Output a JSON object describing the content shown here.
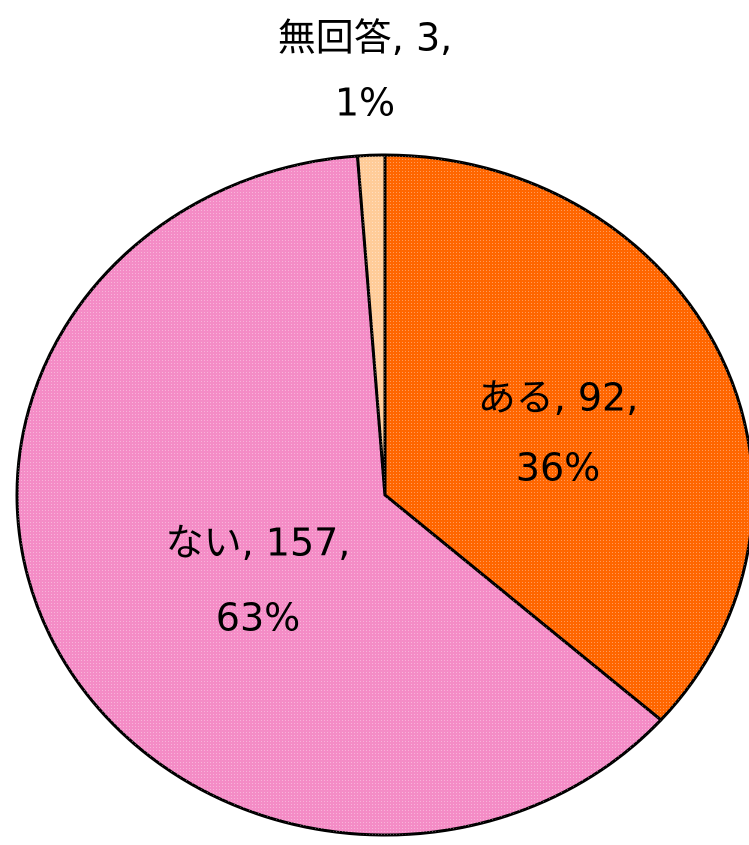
{
  "chart_data": {
    "type": "pie",
    "values": [
      92,
      157,
      3
    ],
    "value_labels": [
      [
        "ある, 92,",
        "36%"
      ],
      [
        "ない, 157,",
        "63%"
      ],
      [
        "無回答, 3,",
        "1%"
      ]
    ],
    "colors": [
      "#ff6600",
      "#f48cc6",
      "#ffcc99"
    ]
  }
}
